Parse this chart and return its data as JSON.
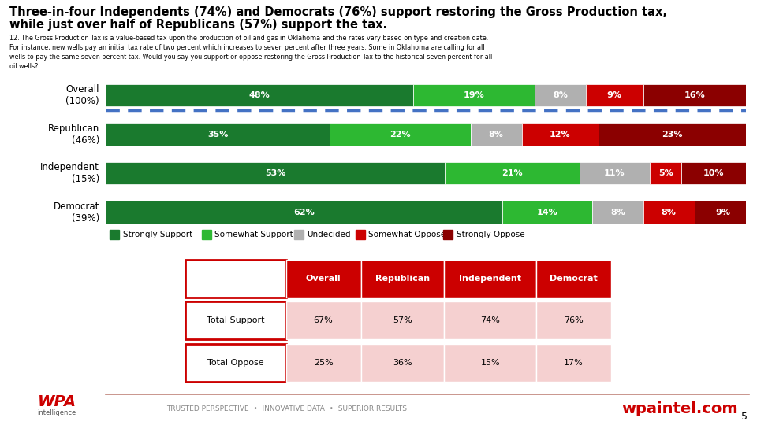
{
  "title_line1": "Three-in-four Independents (74%) and Democrats (76%) support restoring the Gross Production tax,",
  "title_line2": "while just over half of Republicans (57%) support the tax.",
  "subtitle": "12. The Gross Production Tax is a value-based tax upon the production of oil and gas in Oklahoma and the rates vary based on type and creation date.\nFor instance, new wells pay an initial tax rate of two percent which increases to seven percent after three years. Some in Oklahoma are calling for all\nwells to pay the same seven percent tax. Would you say you support or oppose restoring the Gross Production Tax to the historical seven percent for all\noil wells?",
  "categories": [
    "Overall\n(100%)",
    "Republican\n(46%)",
    "Independent\n(15%)",
    "Democrat\n(39%)"
  ],
  "strongly_support": [
    48,
    35,
    53,
    62
  ],
  "somewhat_support": [
    19,
    22,
    21,
    14
  ],
  "undecided": [
    8,
    8,
    11,
    8
  ],
  "somewhat_oppose": [
    9,
    12,
    5,
    8
  ],
  "strongly_oppose": [
    16,
    23,
    10,
    9
  ],
  "colors": {
    "strongly_support": "#1a7a2e",
    "somewhat_support": "#2db832",
    "undecided": "#b0b0b0",
    "somewhat_oppose": "#cc0000",
    "strongly_oppose": "#8b0000"
  },
  "legend_labels": [
    "Strongly Support",
    "Somewhat Support",
    "Undecided",
    "Somewhat Oppose",
    "Strongly Oppose"
  ],
  "table_header": [
    "",
    "Overall",
    "Republican",
    "Independent",
    "Democrat"
  ],
  "table_rows": [
    [
      "Total Support",
      "67%",
      "57%",
      "74%",
      "76%"
    ],
    [
      "Total Oppose",
      "25%",
      "36%",
      "15%",
      "17%"
    ]
  ],
  "table_header_bg": "#cc0000",
  "table_header_fg": "#ffffff",
  "table_row_bg": "#f5d0d0",
  "footer_left": "TRUSTED PERSPECTIVE  •  INNOVATIVE DATA  •  SUPERIOR RESULTS",
  "footer_right": "wpaintel.com",
  "page_number": "5",
  "dashed_line_color": "#4472c4",
  "background_color": "#ffffff"
}
